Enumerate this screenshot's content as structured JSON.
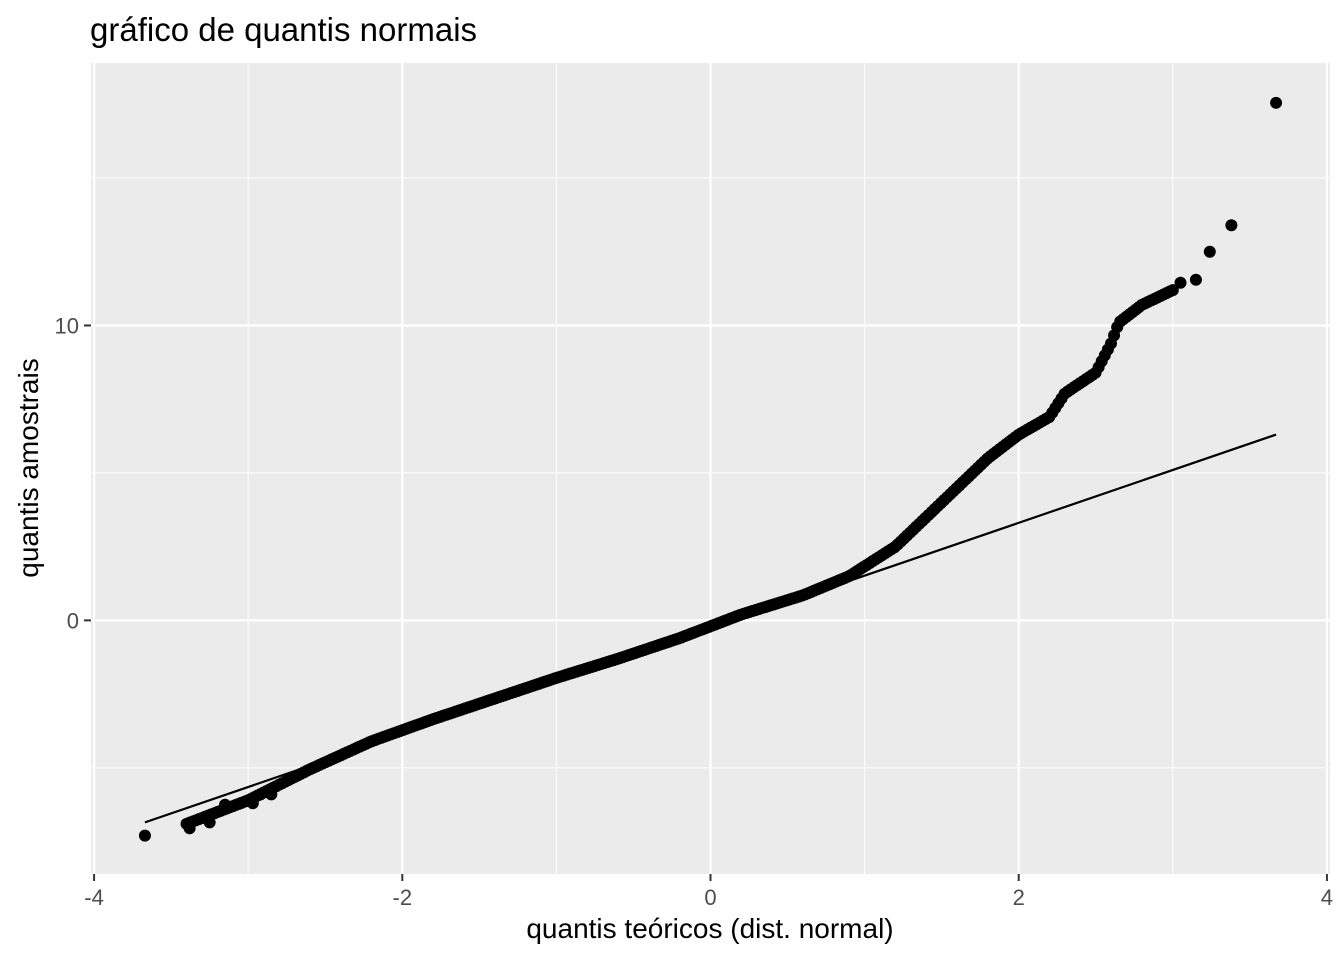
{
  "chart_data": {
    "type": "scatter",
    "title": "gráfico de quantis normais",
    "xlabel": "quantis teóricos (dist. normal)",
    "ylabel": "quantis amostrais",
    "xlim": [
      -4.02,
      4.02
    ],
    "ylim": [
      -8.6,
      18.9
    ],
    "x_ticks": [
      -4,
      -2,
      0,
      2,
      4
    ],
    "x_tick_labels": [
      "-4",
      "-2",
      "0",
      "2",
      "4"
    ],
    "y_ticks": [
      0,
      10
    ],
    "y_tick_labels": [
      "0",
      "10"
    ],
    "y_minor_gridlines": [
      -5,
      5,
      15
    ],
    "x_minor_gridlines": [
      -3,
      -1,
      1,
      3
    ],
    "grid": true,
    "legend": "none",
    "colors": {
      "panel_background": "#EBEBEB",
      "grid": "#FFFFFF",
      "points": "#000000",
      "reference_line": "#000000",
      "tick_label": "#4D4D4D",
      "tick_mark": "#333333"
    },
    "reference_line": {
      "from": {
        "x": -3.67,
        "y": -6.85
      },
      "to": {
        "x": 3.67,
        "y": 6.3
      }
    },
    "curve_knots": [
      {
        "x": -3.4,
        "y": -6.9
      },
      {
        "x": -3.0,
        "y": -6.1
      },
      {
        "x": -2.6,
        "y": -5.05
      },
      {
        "x": -2.2,
        "y": -4.1
      },
      {
        "x": -1.8,
        "y": -3.35
      },
      {
        "x": -1.4,
        "y": -2.65
      },
      {
        "x": -1.0,
        "y": -1.95
      },
      {
        "x": -0.6,
        "y": -1.3
      },
      {
        "x": -0.2,
        "y": -0.6
      },
      {
        "x": 0.2,
        "y": 0.2
      },
      {
        "x": 0.6,
        "y": 0.85
      },
      {
        "x": 0.9,
        "y": 1.5
      },
      {
        "x": 1.2,
        "y": 2.5
      },
      {
        "x": 1.5,
        "y": 4.0
      },
      {
        "x": 1.8,
        "y": 5.5
      },
      {
        "x": 2.0,
        "y": 6.3
      },
      {
        "x": 2.2,
        "y": 6.9
      },
      {
        "x": 2.3,
        "y": 7.7
      },
      {
        "x": 2.5,
        "y": 8.4
      },
      {
        "x": 2.6,
        "y": 9.4
      },
      {
        "x": 2.65,
        "y": 10.1
      },
      {
        "x": 2.8,
        "y": 10.7
      },
      {
        "x": 3.0,
        "y": 11.2
      }
    ],
    "n_curve_points": 320,
    "tail_points": [
      {
        "x": -3.67,
        "y": -7.3
      },
      {
        "x": -3.38,
        "y": -7.05
      },
      {
        "x": -3.25,
        "y": -6.85
      },
      {
        "x": -3.15,
        "y": -6.25
      },
      {
        "x": -3.05,
        "y": -6.2
      },
      {
        "x": -2.97,
        "y": -6.2
      },
      {
        "x": -2.92,
        "y": -5.9
      },
      {
        "x": -2.85,
        "y": -5.9
      },
      {
        "x": 3.05,
        "y": 11.45
      },
      {
        "x": 3.15,
        "y": 11.55
      },
      {
        "x": 3.24,
        "y": 12.5
      },
      {
        "x": 3.38,
        "y": 13.4
      },
      {
        "x": 3.67,
        "y": 17.55
      }
    ]
  }
}
